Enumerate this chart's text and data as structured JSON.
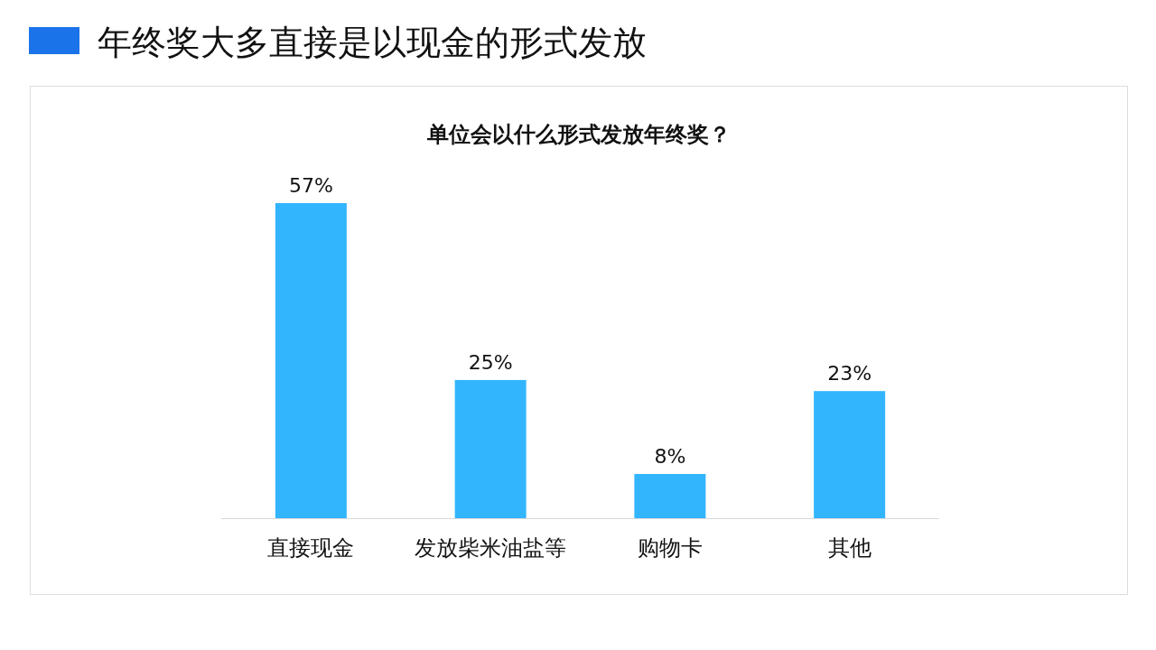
{
  "chart_data": {
    "type": "bar",
    "title": "年终奖大多直接是以现金的形式发放",
    "subtitle": "单位会以什么形式发放年终奖？",
    "categories": [
      "直接现金",
      "发放柴米油盐等",
      "购物卡",
      "其他"
    ],
    "values": [
      57,
      25,
      8,
      23
    ],
    "value_labels": [
      "57%",
      "25%",
      "8%",
      "23%"
    ],
    "color": "#33b5fe"
  }
}
